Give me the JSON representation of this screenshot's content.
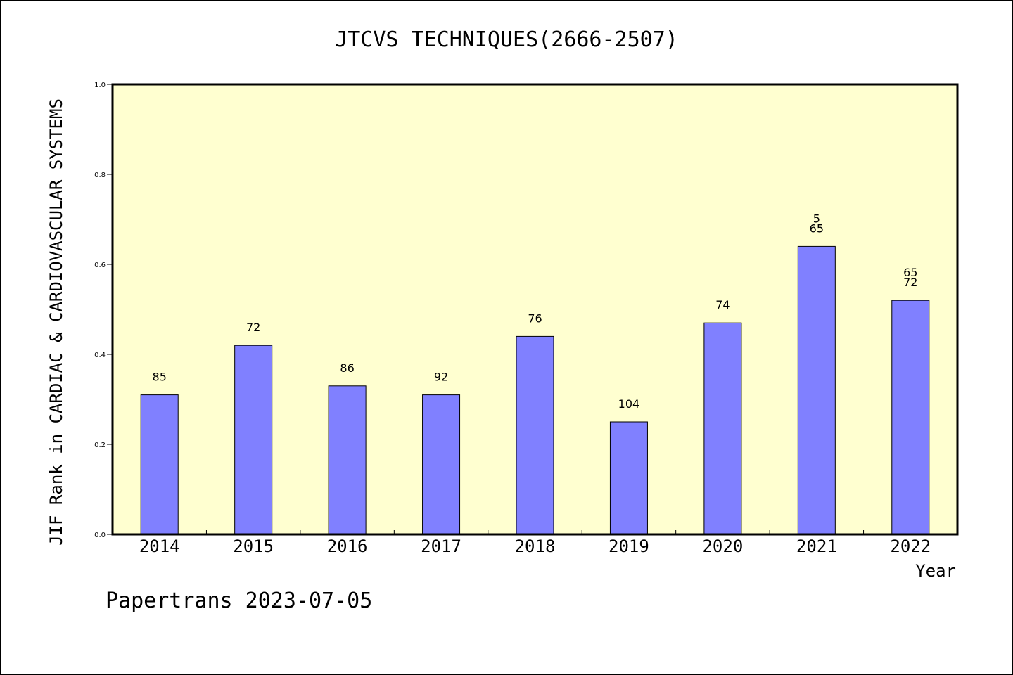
{
  "chart_data": {
    "type": "bar",
    "title": "JTCVS TECHNIQUES(2666-2507)",
    "xlabel": "Year",
    "ylabel": "JIF Rank in CARDIAC & CARDIOVASCULAR SYSTEMS",
    "categories": [
      "2014",
      "2015",
      "2016",
      "2017",
      "2018",
      "2019",
      "2020",
      "2021",
      "2022"
    ],
    "values": [
      0.31,
      0.42,
      0.33,
      0.31,
      0.44,
      0.25,
      0.47,
      0.64,
      0.52
    ],
    "bar_labels": [
      [
        "85"
      ],
      [
        "72"
      ],
      [
        "86"
      ],
      [
        "92"
      ],
      [
        "76"
      ],
      [
        "104"
      ],
      [
        "74"
      ],
      [
        "5",
        "65"
      ],
      [
        "65",
        "72"
      ]
    ],
    "ylim": [
      0,
      1.0
    ],
    "yticks": [
      "0.0",
      "0.2",
      "0.4",
      "0.6",
      "0.8",
      "1.0"
    ],
    "ytick_values": [
      0,
      0.2,
      0.4,
      0.6,
      0.8,
      1.0
    ],
    "grid": false,
    "colors": {
      "bar": "#8080ff",
      "plot_background": "#ffffd0"
    }
  },
  "footer": "Papertrans 2023-07-05"
}
